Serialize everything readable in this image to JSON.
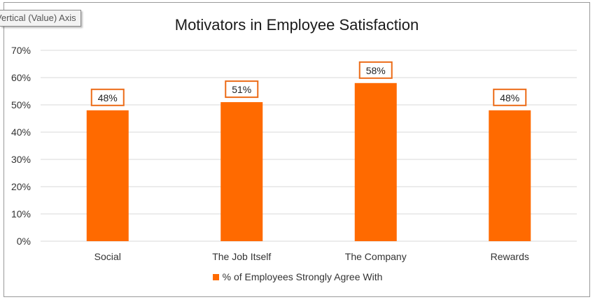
{
  "tooltip": {
    "text": "Vertical (Value) Axis"
  },
  "chart_data": {
    "type": "bar",
    "title": "Motivators in Employee Satisfaction",
    "categories": [
      "Social",
      "The Job Itself",
      "The Company",
      "Rewards"
    ],
    "series": [
      {
        "name": "% of Employees Strongly Agree With",
        "values": [
          48,
          51,
          58,
          48
        ]
      }
    ],
    "data_labels": [
      "48%",
      "51%",
      "58%",
      "48%"
    ],
    "y_ticks": [
      "0%",
      "10%",
      "20%",
      "30%",
      "40%",
      "50%",
      "60%",
      "70%"
    ],
    "ylim": [
      0,
      70
    ],
    "ytick_step": 10,
    "xlabel": "",
    "ylabel": "",
    "grid": true,
    "legend_position": "bottom",
    "bar_color": "#ff6a00",
    "label_border_color": "#ec6b17",
    "gridline_color": "#d9d9d9"
  }
}
